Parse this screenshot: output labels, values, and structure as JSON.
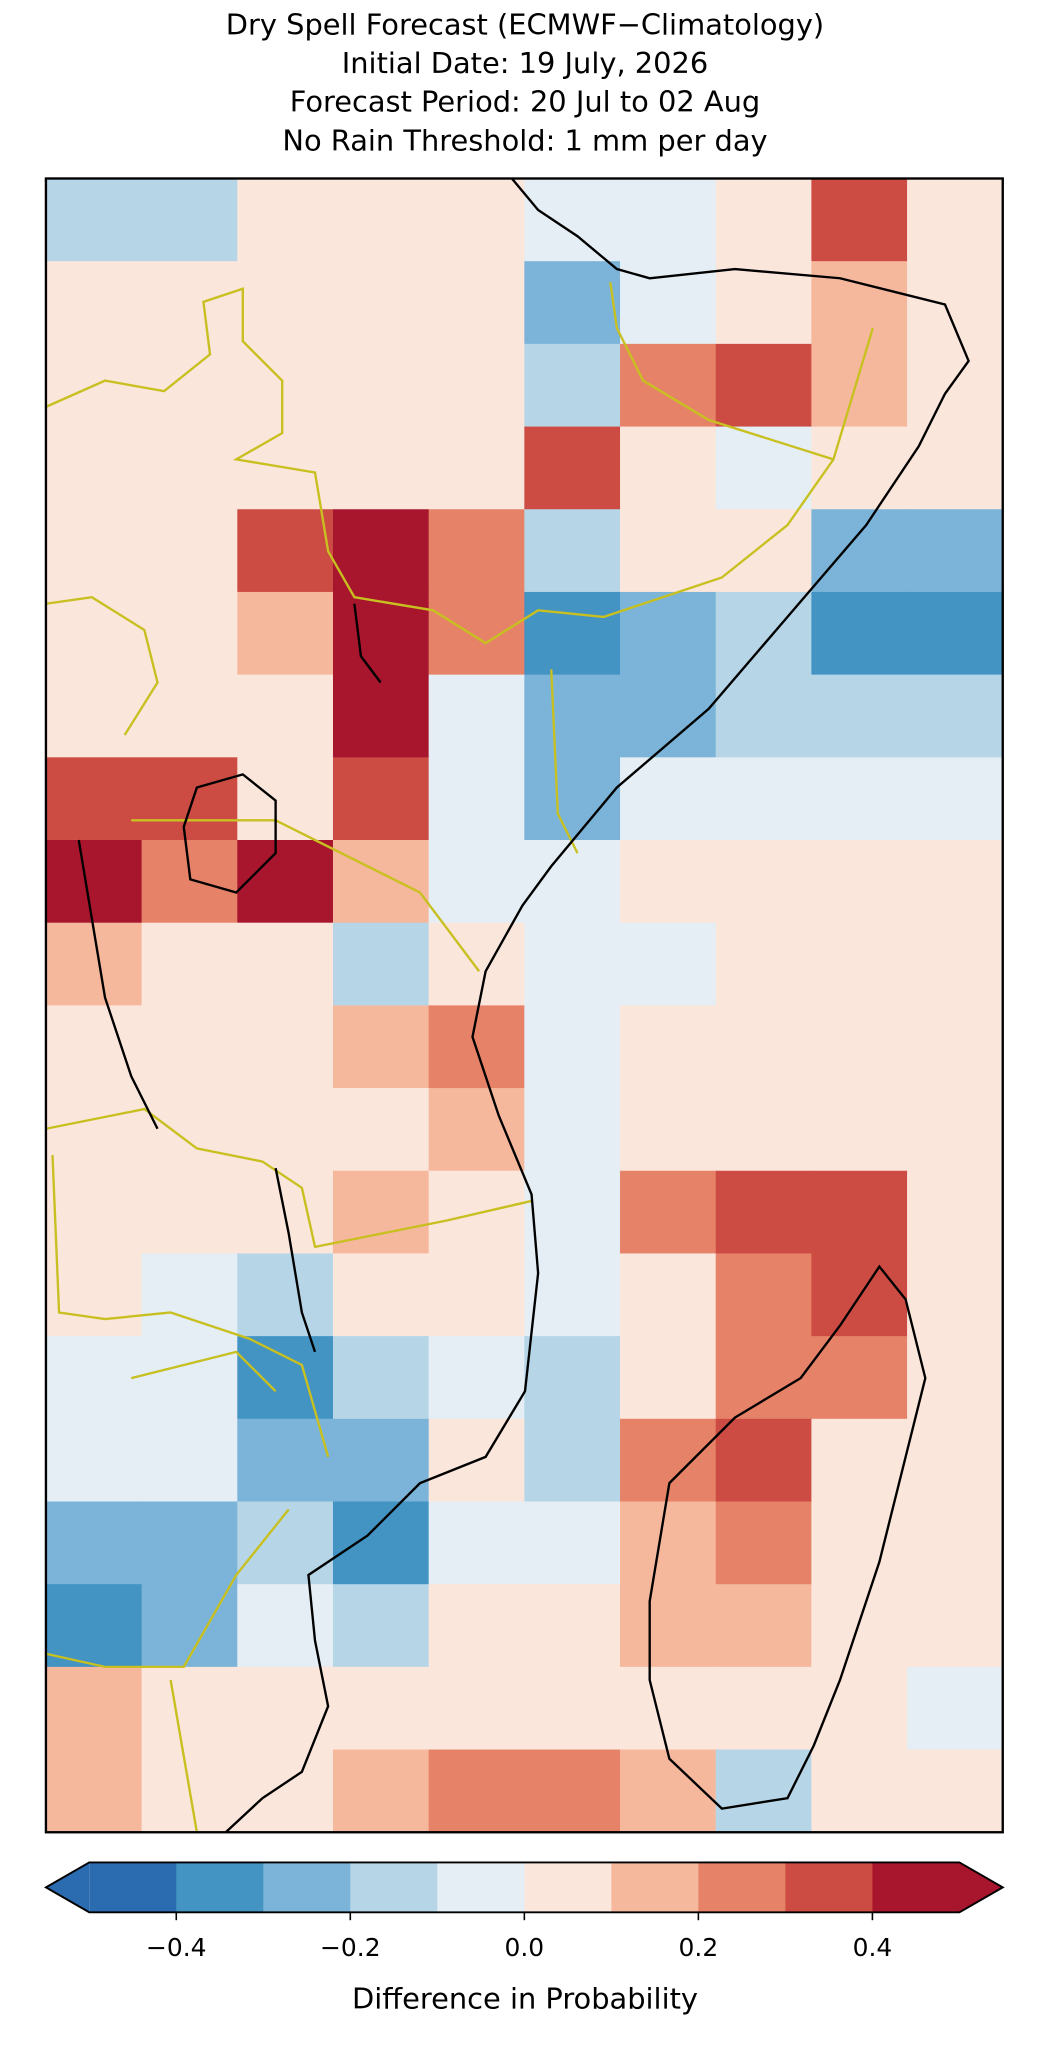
{
  "chart_data": {
    "type": "raster-map",
    "title": [
      "Dry Spell Forecast (ECMWF−Climatology)",
      "Initial Date: 19 July, 2026",
      "Forecast Period: 20 Jul to 02 Aug",
      "No Rain Threshold: 1 mm per day"
    ],
    "colorbar_label": "Difference in Probability",
    "levels": [
      -0.5,
      -0.4,
      -0.3,
      -0.2,
      -0.1,
      0,
      0.1,
      0.2,
      0.3,
      0.4,
      0.5
    ],
    "colors": [
      "#2b6cb0",
      "#4393c3",
      "#7bb4d8",
      "#b6d6e8",
      "#e4eef4",
      "#fbe6dc",
      "#f6b89d",
      "#e58268",
      "#cc4c43",
      "#a8162d"
    ],
    "extend": "both",
    "cticks": [
      {
        "value": -0.4,
        "label": "−0.4"
      },
      {
        "value": -0.2,
        "label": "−0.2"
      },
      {
        "value": 0,
        "label": "0.0"
      },
      0.2,
      0.4
    ],
    "grid": [
      [
        -0.15,
        -0.15,
        0.05,
        0.05,
        0.05,
        -0.05,
        -0.05,
        0.05,
        0.3,
        0.05
      ],
      [
        0.05,
        0.05,
        0.05,
        0.05,
        0.05,
        -0.25,
        -0.05,
        0.05,
        0.15,
        0.05
      ],
      [
        0.05,
        0.05,
        0.05,
        0.05,
        0.05,
        -0.15,
        0.2,
        0.35,
        0.15,
        0.05
      ],
      [
        0.05,
        0.05,
        0.05,
        0.05,
        0.05,
        0.35,
        0.05,
        -0.05,
        0.05,
        0.05
      ],
      [
        0.05,
        0.05,
        0.3,
        0.45,
        0.25,
        -0.15,
        0.05,
        0.05,
        -0.25,
        -0.3
      ],
      [
        0.05,
        0.05,
        0.15,
        0.45,
        0.2,
        -0.35,
        -0.25,
        -0.15,
        -0.35,
        -0.35
      ],
      [
        0.05,
        0.05,
        0.05,
        0.45,
        -0.05,
        -0.25,
        -0.3,
        -0.15,
        -0.15,
        -0.15
      ],
      [
        0.3,
        0.35,
        0.05,
        0.35,
        -0.1,
        -0.3,
        -0.05,
        -0.05,
        -0.05,
        -0.05
      ],
      [
        0.45,
        0.25,
        0.4,
        0.15,
        -0.05,
        -0.05,
        0.05,
        0.05,
        0.05,
        0.05
      ],
      [
        0.15,
        0.05,
        0.05,
        -0.15,
        0.05,
        -0.05,
        -0.05,
        0.05,
        0.05,
        0.05
      ],
      [
        0.05,
        0.05,
        0.05,
        0.15,
        0.25,
        -0.05,
        0.05,
        0.05,
        0.05,
        0.05
      ],
      [
        0.05,
        0.05,
        0.05,
        0.05,
        0.15,
        -0.05,
        0.05,
        0.05,
        0.05,
        0.05
      ],
      [
        0.05,
        0.05,
        0.05,
        0.15,
        0.05,
        -0.05,
        0.25,
        0.35,
        0.3,
        0.05
      ],
      [
        0.05,
        -0.05,
        -0.15,
        0.05,
        0.05,
        -0.1,
        0.05,
        0.2,
        0.3,
        0.05
      ],
      [
        -0.05,
        -0.05,
        -0.35,
        -0.15,
        -0.05,
        -0.15,
        0.05,
        0.25,
        0.2,
        0.05
      ],
      [
        -0.05,
        -0.05,
        -0.3,
        -0.25,
        0.05,
        -0.15,
        0.2,
        0.3,
        0.05,
        0.05
      ],
      [
        -0.25,
        -0.25,
        -0.2,
        -0.35,
        -0.1,
        -0.05,
        0.15,
        0.25,
        0.05,
        0.05
      ],
      [
        -0.35,
        -0.25,
        -0.1,
        -0.2,
        0.05,
        0.05,
        0.15,
        0.15,
        0.05,
        0.05
      ],
      [
        0.15,
        0.05,
        0.05,
        0.05,
        0.05,
        0.05,
        0.05,
        0.05,
        0.05,
        -0.05
      ],
      [
        0.15,
        0.05,
        0.05,
        0.15,
        0.25,
        0.2,
        0.15,
        -0.15,
        0.05,
        0.05
      ]
    ]
  }
}
